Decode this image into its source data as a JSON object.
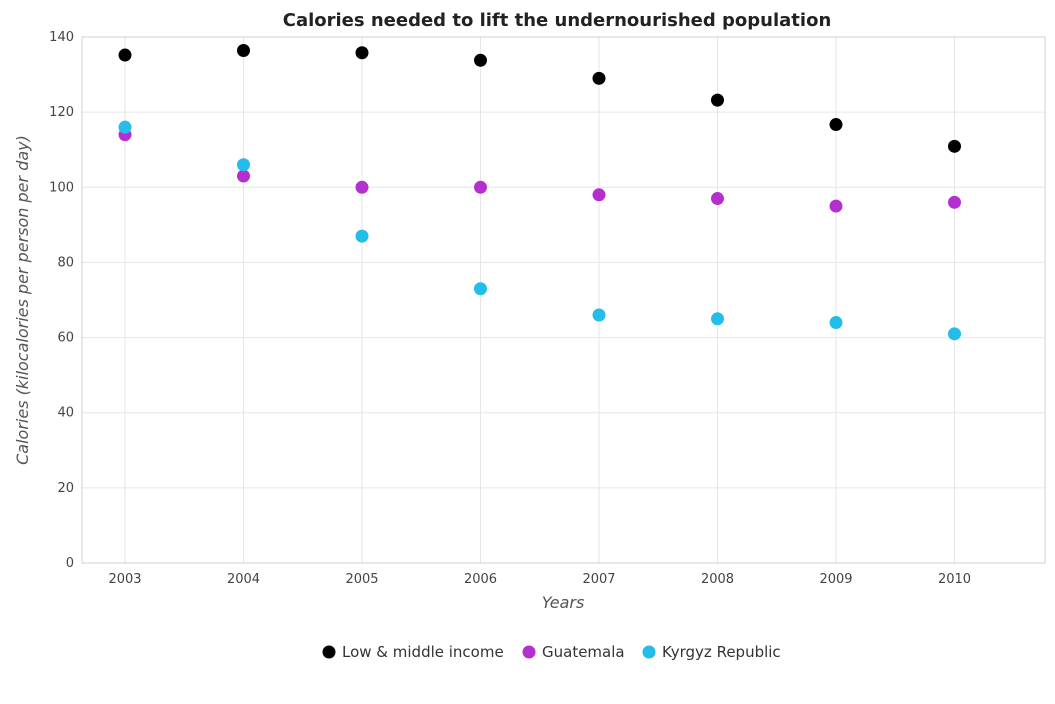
{
  "chart_data": {
    "type": "scatter",
    "title": "Calories needed to lift the undernourished population",
    "xlabel": "Years",
    "ylabel": "Calories (kilocalories per person per day)",
    "categories": [
      "2003",
      "2004",
      "2005",
      "2006",
      "2007",
      "2008",
      "2009",
      "2010"
    ],
    "ylim": [
      0,
      140
    ],
    "yticks": [
      0,
      20,
      40,
      60,
      80,
      100,
      120,
      140
    ],
    "grid": true,
    "legend_position": "bottom",
    "series": [
      {
        "name": "Low & middle income",
        "color": "#000000",
        "values": [
          135.2,
          136.4,
          135.8,
          133.8,
          129.0,
          123.2,
          116.7,
          110.9
        ]
      },
      {
        "name": "Guatemala",
        "color": "#b52fd0",
        "values": [
          114,
          103,
          100,
          100,
          98,
          97,
          95,
          96
        ]
      },
      {
        "name": "Kyrgyz Republic",
        "color": "#23bde9",
        "values": [
          116,
          106,
          87,
          73,
          66,
          65,
          64,
          61
        ]
      }
    ]
  }
}
